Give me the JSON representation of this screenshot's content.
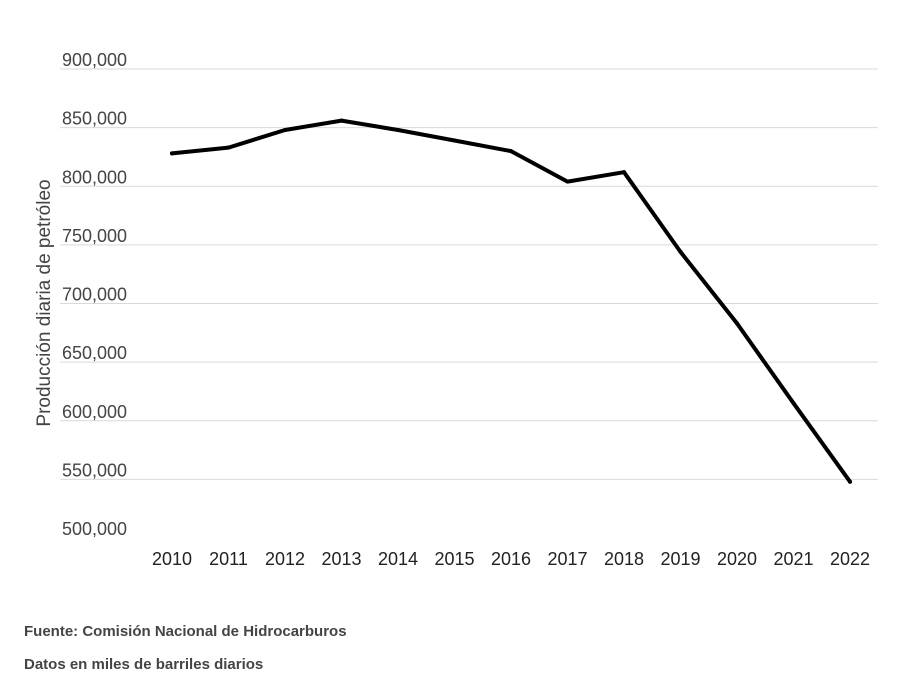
{
  "chart_data": {
    "type": "line",
    "title": "",
    "xlabel": "",
    "ylabel": "Producción diaria de petróleo",
    "x": [
      "2010",
      "2011",
      "2012",
      "2013",
      "2014",
      "2015",
      "2016",
      "2017",
      "2018",
      "2019",
      "2020",
      "2021",
      "2022"
    ],
    "series": [
      {
        "name": "",
        "color": "#000000",
        "values": [
          828000,
          833000,
          848000,
          856000,
          848000,
          839000,
          830000,
          804000,
          812000,
          744000,
          683000,
          615000,
          548000
        ]
      }
    ],
    "ylim": [
      500000,
      900000
    ],
    "yticks": [
      500000,
      550000,
      600000,
      650000,
      700000,
      750000,
      800000,
      850000,
      900000
    ],
    "ytick_labels": [
      "500,000",
      "550,000",
      "600,000",
      "650,000",
      "700,000",
      "750,000",
      "800,000",
      "850,000",
      "900,000"
    ],
    "grid": true,
    "legend": "none"
  },
  "footer": {
    "source": "Fuente: Comisión Nacional de Hidrocarburos",
    "units": "Datos en miles de barriles diarios"
  }
}
